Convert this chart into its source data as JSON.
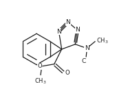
{
  "bg_color": "#ffffff",
  "line_color": "#1a1a1a",
  "line_width": 0.9,
  "font_size": 6.5,
  "fig_width": 1.99,
  "fig_height": 1.36,
  "dpi": 100,
  "xlim": [
    0,
    10
  ],
  "ylim": [
    0,
    6.8
  ]
}
